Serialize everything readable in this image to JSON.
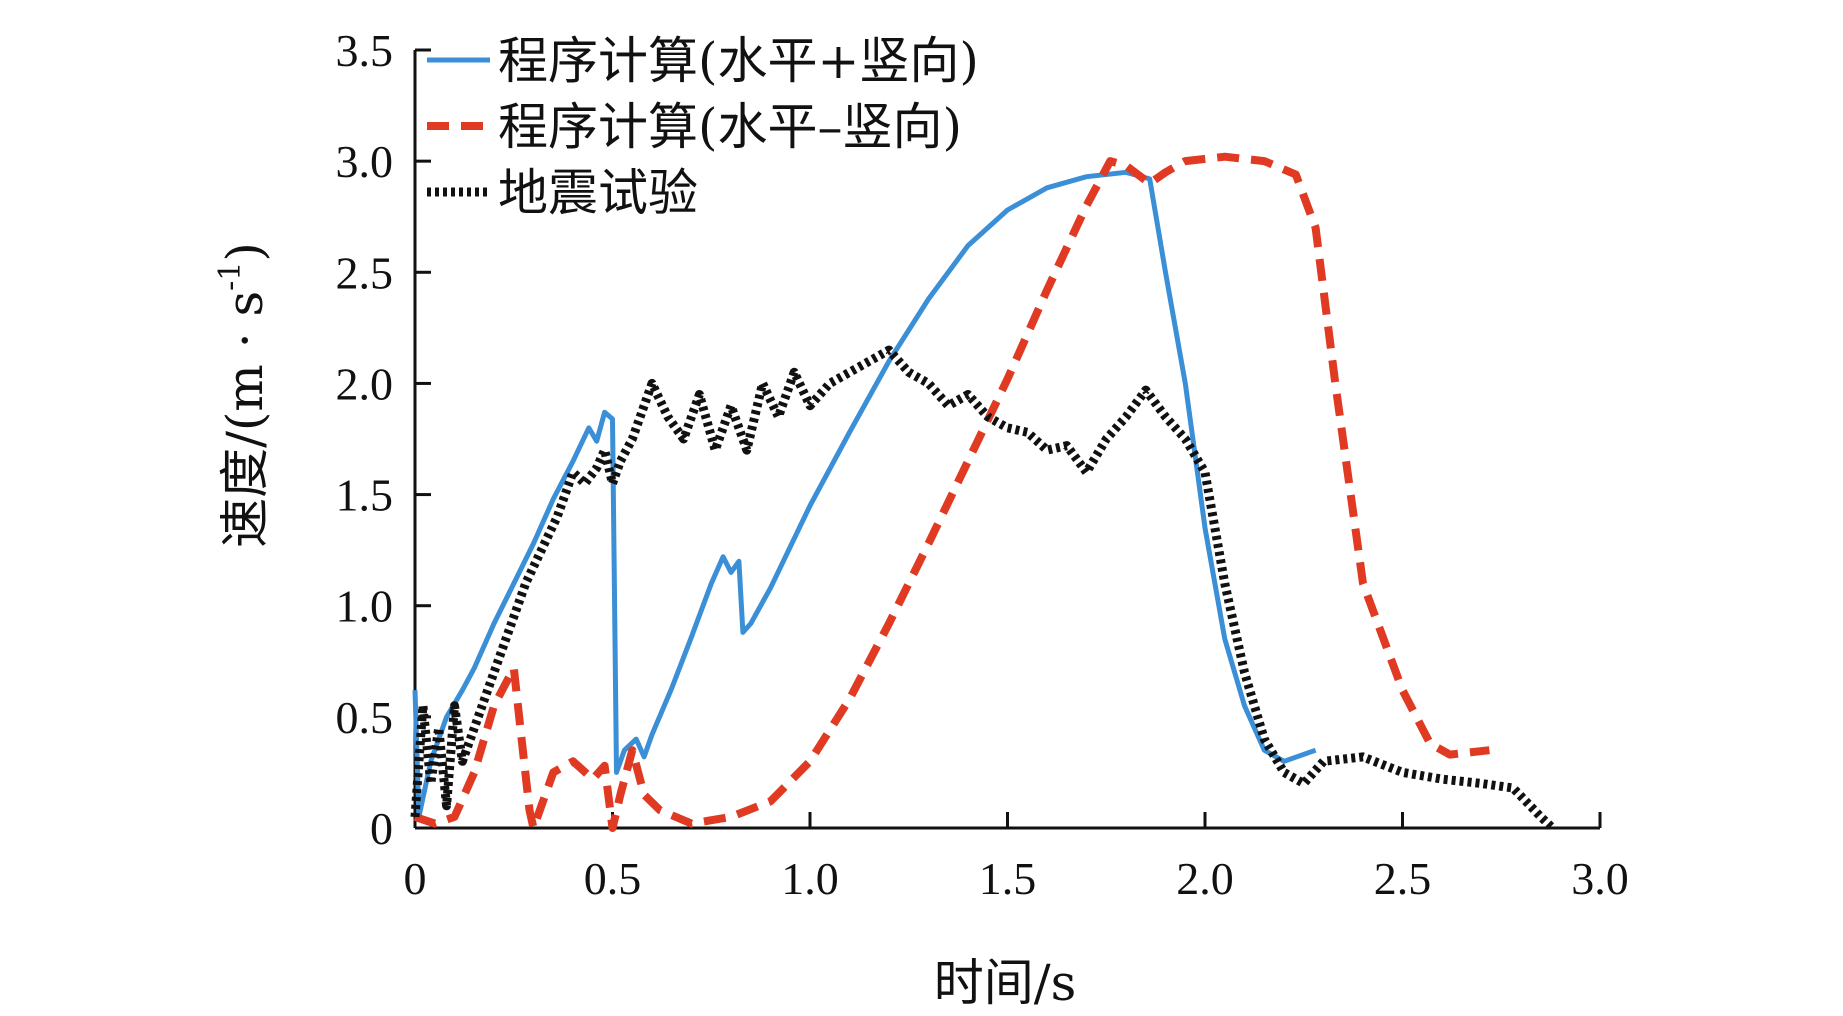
{
  "chart_data": {
    "type": "line",
    "xlabel": "时间/s",
    "ylabel": "速度/(m · s",
    "ylabel_sup": "-1",
    "ylabel_close": ")",
    "xlim": [
      0,
      3.0
    ],
    "ylim": [
      0,
      3.5
    ],
    "x_ticks": [
      "0",
      "0.5",
      "1.0",
      "1.5",
      "2.0",
      "2.5",
      "3.0"
    ],
    "x_tick_values": [
      0,
      0.5,
      1.0,
      1.5,
      2.0,
      2.5,
      3.0
    ],
    "y_ticks": [
      "0",
      "0.5",
      "1.0",
      "1.5",
      "2.0",
      "2.5",
      "3.0",
      "3.5"
    ],
    "y_tick_values": [
      0,
      0.5,
      1.0,
      1.5,
      2.0,
      2.5,
      3.0,
      3.5
    ],
    "grid": false,
    "legend_position": "top-left",
    "series": [
      {
        "name": "程序计算(水平+竖向)",
        "style": "solid",
        "color": "#3b8fd6",
        "points": [
          [
            0,
            0.62
          ],
          [
            0.01,
            0.05
          ],
          [
            0.04,
            0.3
          ],
          [
            0.08,
            0.5
          ],
          [
            0.12,
            0.62
          ],
          [
            0.15,
            0.72
          ],
          [
            0.2,
            0.92
          ],
          [
            0.25,
            1.1
          ],
          [
            0.3,
            1.28
          ],
          [
            0.35,
            1.48
          ],
          [
            0.4,
            1.65
          ],
          [
            0.44,
            1.8
          ],
          [
            0.46,
            1.74
          ],
          [
            0.48,
            1.87
          ],
          [
            0.5,
            1.84
          ],
          [
            0.51,
            0.25
          ],
          [
            0.53,
            0.35
          ],
          [
            0.56,
            0.4
          ],
          [
            0.58,
            0.32
          ],
          [
            0.6,
            0.42
          ],
          [
            0.65,
            0.63
          ],
          [
            0.7,
            0.86
          ],
          [
            0.75,
            1.1
          ],
          [
            0.78,
            1.22
          ],
          [
            0.8,
            1.15
          ],
          [
            0.82,
            1.2
          ],
          [
            0.83,
            0.88
          ],
          [
            0.85,
            0.92
          ],
          [
            0.9,
            1.08
          ],
          [
            1.0,
            1.45
          ],
          [
            1.1,
            1.78
          ],
          [
            1.2,
            2.1
          ],
          [
            1.3,
            2.38
          ],
          [
            1.4,
            2.62
          ],
          [
            1.5,
            2.78
          ],
          [
            1.6,
            2.88
          ],
          [
            1.7,
            2.93
          ],
          [
            1.8,
            2.95
          ],
          [
            1.86,
            2.92
          ],
          [
            1.9,
            2.5
          ],
          [
            1.95,
            2.0
          ],
          [
            2.0,
            1.35
          ],
          [
            2.05,
            0.85
          ],
          [
            2.1,
            0.55
          ],
          [
            2.15,
            0.35
          ],
          [
            2.2,
            0.3
          ],
          [
            2.28,
            0.35
          ]
        ]
      },
      {
        "name": "程序计算(水平–竖向)",
        "style": "dashed",
        "color": "#e03a22",
        "points": [
          [
            0,
            0.05
          ],
          [
            0.05,
            0.02
          ],
          [
            0.1,
            0.05
          ],
          [
            0.15,
            0.25
          ],
          [
            0.2,
            0.55
          ],
          [
            0.25,
            0.72
          ],
          [
            0.27,
            0.4
          ],
          [
            0.29,
            0.08
          ],
          [
            0.3,
            0.0
          ],
          [
            0.32,
            0.1
          ],
          [
            0.35,
            0.25
          ],
          [
            0.4,
            0.3
          ],
          [
            0.45,
            0.22
          ],
          [
            0.48,
            0.28
          ],
          [
            0.5,
            0.0
          ],
          [
            0.52,
            0.15
          ],
          [
            0.55,
            0.35
          ],
          [
            0.58,
            0.15
          ],
          [
            0.62,
            0.08
          ],
          [
            0.7,
            0.02
          ],
          [
            0.8,
            0.05
          ],
          [
            0.9,
            0.12
          ],
          [
            1.0,
            0.3
          ],
          [
            1.1,
            0.58
          ],
          [
            1.2,
            0.92
          ],
          [
            1.3,
            1.28
          ],
          [
            1.4,
            1.65
          ],
          [
            1.5,
            2.02
          ],
          [
            1.6,
            2.42
          ],
          [
            1.7,
            2.8
          ],
          [
            1.76,
            3.0
          ],
          [
            1.8,
            2.98
          ],
          [
            1.86,
            2.9
          ],
          [
            1.9,
            2.95
          ],
          [
            1.95,
            3.0
          ],
          [
            2.05,
            3.02
          ],
          [
            2.15,
            3.0
          ],
          [
            2.23,
            2.94
          ],
          [
            2.28,
            2.7
          ],
          [
            2.33,
            2.0
          ],
          [
            2.4,
            1.1
          ],
          [
            2.5,
            0.62
          ],
          [
            2.57,
            0.38
          ],
          [
            2.62,
            0.33
          ],
          [
            2.72,
            0.35
          ]
        ]
      },
      {
        "name": "地震试验",
        "style": "dotted",
        "color": "#111111",
        "points": [
          [
            0,
            0.05
          ],
          [
            0.02,
            0.55
          ],
          [
            0.04,
            0.2
          ],
          [
            0.06,
            0.45
          ],
          [
            0.08,
            0.1
          ],
          [
            0.1,
            0.55
          ],
          [
            0.12,
            0.3
          ],
          [
            0.15,
            0.45
          ],
          [
            0.18,
            0.6
          ],
          [
            0.22,
            0.8
          ],
          [
            0.25,
            0.95
          ],
          [
            0.28,
            1.1
          ],
          [
            0.32,
            1.25
          ],
          [
            0.36,
            1.4
          ],
          [
            0.4,
            1.6
          ],
          [
            0.43,
            1.55
          ],
          [
            0.46,
            1.62
          ],
          [
            0.48,
            1.7
          ],
          [
            0.5,
            1.55
          ],
          [
            0.52,
            1.65
          ],
          [
            0.55,
            1.75
          ],
          [
            0.58,
            1.9
          ],
          [
            0.6,
            2.0
          ],
          [
            0.64,
            1.85
          ],
          [
            0.68,
            1.75
          ],
          [
            0.72,
            1.95
          ],
          [
            0.76,
            1.7
          ],
          [
            0.8,
            1.9
          ],
          [
            0.84,
            1.7
          ],
          [
            0.88,
            2.0
          ],
          [
            0.92,
            1.85
          ],
          [
            0.96,
            2.05
          ],
          [
            1.0,
            1.9
          ],
          [
            1.05,
            2.0
          ],
          [
            1.1,
            2.05
          ],
          [
            1.15,
            2.1
          ],
          [
            1.2,
            2.15
          ],
          [
            1.25,
            2.05
          ],
          [
            1.3,
            2.0
          ],
          [
            1.35,
            1.9
          ],
          [
            1.4,
            1.95
          ],
          [
            1.45,
            1.85
          ],
          [
            1.5,
            1.8
          ],
          [
            1.55,
            1.78
          ],
          [
            1.6,
            1.7
          ],
          [
            1.65,
            1.72
          ],
          [
            1.7,
            1.6
          ],
          [
            1.75,
            1.75
          ],
          [
            1.8,
            1.85
          ],
          [
            1.85,
            1.97
          ],
          [
            1.9,
            1.85
          ],
          [
            1.95,
            1.75
          ],
          [
            2.0,
            1.6
          ],
          [
            2.05,
            1.1
          ],
          [
            2.1,
            0.7
          ],
          [
            2.15,
            0.4
          ],
          [
            2.2,
            0.25
          ],
          [
            2.25,
            0.2
          ],
          [
            2.3,
            0.3
          ],
          [
            2.4,
            0.32
          ],
          [
            2.5,
            0.25
          ],
          [
            2.6,
            0.22
          ],
          [
            2.7,
            0.2
          ],
          [
            2.78,
            0.18
          ],
          [
            2.85,
            0.05
          ],
          [
            2.88,
            0.0
          ]
        ]
      }
    ]
  }
}
